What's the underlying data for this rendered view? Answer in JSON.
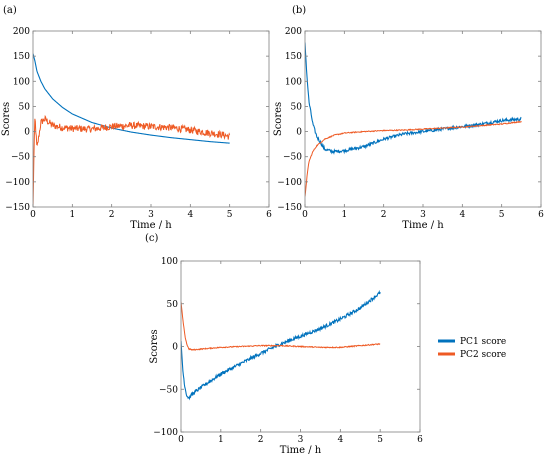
{
  "legend": [
    {
      "label": "PC1 score",
      "color": "#0072BD"
    },
    {
      "label": "PC2 score",
      "color": "#EE5A24"
    }
  ],
  "chart_data": [
    {
      "panel": "(a)",
      "type": "line",
      "xlabel": "Time / h",
      "ylabel": "Scores",
      "xlim": [
        0,
        6
      ],
      "ylim": [
        -150,
        200
      ],
      "xticks": [
        0,
        1,
        2,
        3,
        4,
        5,
        6
      ],
      "yticks": [
        -150,
        -100,
        -50,
        0,
        50,
        100,
        150,
        200
      ],
      "series": [
        {
          "name": "PC1 score",
          "color": "#0072BD",
          "noise": 0,
          "x": [
            0,
            0.05,
            0.1,
            0.2,
            0.3,
            0.5,
            0.75,
            1.0,
            1.5,
            2.0,
            2.5,
            3.0,
            3.5,
            4.0,
            4.5,
            5.0
          ],
          "y": [
            155,
            140,
            120,
            100,
            85,
            65,
            48,
            35,
            18,
            7,
            -1,
            -7,
            -12,
            -16,
            -20,
            -23
          ]
        },
        {
          "name": "PC2 score",
          "color": "#EE5A24",
          "noise": 7,
          "x": [
            0,
            0.02,
            0.05,
            0.1,
            0.2,
            0.3,
            0.5,
            0.75,
            1.0,
            1.5,
            2.0,
            2.5,
            3.0,
            3.5,
            4.0,
            4.5,
            4.8,
            5.0
          ],
          "y": [
            -150,
            -60,
            30,
            -35,
            18,
            25,
            12,
            8,
            6,
            5,
            10,
            12,
            10,
            8,
            3,
            -3,
            -6,
            -10
          ]
        }
      ]
    },
    {
      "panel": "(b)",
      "type": "line",
      "xlabel": "Time / h",
      "ylabel": "Scores",
      "xlim": [
        0,
        6
      ],
      "ylim": [
        -150,
        200
      ],
      "xticks": [
        0,
        1,
        2,
        3,
        4,
        5,
        6
      ],
      "yticks": [
        -150,
        -100,
        -50,
        0,
        50,
        100,
        150,
        200
      ],
      "series": [
        {
          "name": "PC1 score",
          "color": "#0072BD",
          "noise": 3,
          "x": [
            0,
            0.05,
            0.1,
            0.2,
            0.3,
            0.5,
            0.7,
            1.0,
            1.5,
            2.0,
            2.5,
            3.0,
            3.5,
            4.0,
            4.5,
            5.0,
            5.5
          ],
          "y": [
            175,
            110,
            60,
            15,
            -10,
            -35,
            -40,
            -38,
            -30,
            -15,
            -5,
            0,
            5,
            10,
            15,
            22,
            25
          ]
        },
        {
          "name": "PC2 score",
          "color": "#EE5A24",
          "noise": 1,
          "x": [
            0,
            0.05,
            0.1,
            0.2,
            0.3,
            0.5,
            0.75,
            1.0,
            1.5,
            2.0,
            2.5,
            3.0,
            3.5,
            4.0,
            4.5,
            5.0,
            5.5
          ],
          "y": [
            -130,
            -90,
            -60,
            -40,
            -28,
            -15,
            -7,
            -3,
            0,
            2,
            3,
            5,
            7,
            9,
            12,
            15,
            20
          ]
        }
      ]
    },
    {
      "panel": "(c)",
      "type": "line",
      "xlabel": "Time / h",
      "ylabel": "Scores",
      "xlim": [
        0,
        6
      ],
      "ylim": [
        -100,
        100
      ],
      "xticks": [
        0,
        1,
        2,
        3,
        4,
        5,
        6
      ],
      "yticks": [
        -100,
        -50,
        0,
        50,
        100
      ],
      "series": [
        {
          "name": "PC1 score",
          "color": "#0072BD",
          "noise": 2,
          "x": [
            0,
            0.05,
            0.1,
            0.15,
            0.2,
            0.3,
            0.5,
            0.75,
            1.0,
            1.5,
            2.0,
            2.5,
            3.0,
            3.5,
            4.0,
            4.5,
            5.0
          ],
          "y": [
            5,
            -30,
            -48,
            -58,
            -60,
            -55,
            -48,
            -40,
            -32,
            -20,
            -8,
            3,
            12,
            21,
            32,
            45,
            63
          ]
        },
        {
          "name": "PC2 score",
          "color": "#EE5A24",
          "noise": 0.6,
          "x": [
            0,
            0.05,
            0.1,
            0.15,
            0.2,
            0.3,
            0.5,
            0.75,
            1.0,
            1.5,
            2.0,
            2.5,
            3.0,
            3.5,
            4.0,
            4.5,
            5.0
          ],
          "y": [
            52,
            30,
            12,
            2,
            -3,
            -4,
            -3,
            -2,
            -1,
            0,
            1,
            1,
            0,
            -1,
            -1,
            1,
            3
          ]
        }
      ]
    }
  ]
}
